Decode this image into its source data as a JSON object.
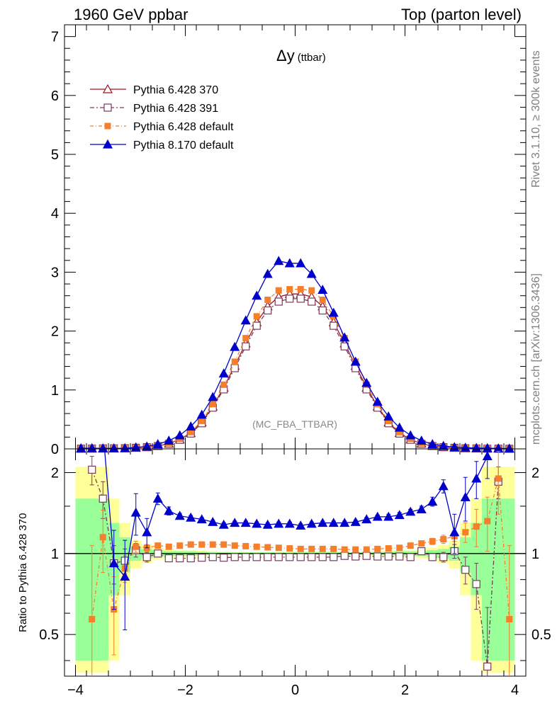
{
  "header": {
    "left": "1960 GeV ppbar",
    "right": "Top (parton level)"
  },
  "side_labels": {
    "rivet": "Rivet 3.1.10, ≥ 300k events",
    "mcplots": "mcplots.cern.ch [arXiv:1306.3436]"
  },
  "chart_data": [
    {
      "type": "line",
      "panel": "main",
      "title": "Δy",
      "title_suffix": "(ttbar)",
      "annotation": "(MC_FBA_TTBAR)",
      "xlim": [
        -4.2,
        4.2
      ],
      "ylim": [
        0,
        7.2
      ],
      "yticks": [
        0,
        1,
        2,
        3,
        4,
        5,
        6,
        7
      ],
      "x": [
        -3.9,
        -3.7,
        -3.5,
        -3.3,
        -3.1,
        -2.9,
        -2.7,
        -2.5,
        -2.3,
        -2.1,
        -1.9,
        -1.7,
        -1.5,
        -1.3,
        -1.1,
        -0.9,
        -0.7,
        -0.5,
        -0.3,
        -0.1,
        0.1,
        0.3,
        0.5,
        0.7,
        0.9,
        1.1,
        1.3,
        1.5,
        1.7,
        1.9,
        2.1,
        2.3,
        2.5,
        2.7,
        2.9,
        3.1,
        3.3,
        3.5,
        3.7,
        3.9
      ],
      "legend_position": "top-left",
      "series": [
        {
          "name": "Pythia 6.428 370",
          "color": "#a0141e",
          "marker": "triangle-open",
          "values": [
            0.002,
            0.004,
            0.006,
            0.008,
            0.012,
            0.018,
            0.03,
            0.05,
            0.09,
            0.16,
            0.27,
            0.45,
            0.72,
            1.04,
            1.41,
            1.79,
            2.15,
            2.42,
            2.58,
            2.63,
            2.63,
            2.58,
            2.42,
            2.15,
            1.79,
            1.41,
            1.04,
            0.72,
            0.45,
            0.27,
            0.16,
            0.09,
            0.05,
            0.03,
            0.018,
            0.012,
            0.008,
            0.006,
            0.004,
            0.002
          ]
        },
        {
          "name": "Pythia 6.428 391",
          "color": "#7a3a5a",
          "marker": "square-open",
          "values": [
            0.004,
            0.006,
            0.009,
            0.01,
            0.012,
            0.019,
            0.029,
            0.048,
            0.086,
            0.154,
            0.26,
            0.435,
            0.7,
            1.01,
            1.37,
            1.74,
            2.09,
            2.35,
            2.5,
            2.55,
            2.55,
            2.5,
            2.35,
            2.09,
            1.74,
            1.37,
            1.01,
            0.7,
            0.435,
            0.26,
            0.154,
            0.086,
            0.048,
            0.029,
            0.019,
            0.011,
            0.008,
            0.003,
            0.004,
            0.002
          ]
        },
        {
          "name": "Pythia 6.428 default",
          "color": "#f57f2a",
          "marker": "square-filled",
          "values": [
            0.001,
            0.004,
            0.007,
            0.006,
            0.011,
            0.019,
            0.031,
            0.052,
            0.095,
            0.17,
            0.285,
            0.475,
            0.76,
            1.09,
            1.48,
            1.88,
            2.25,
            2.53,
            2.69,
            2.71,
            2.71,
            2.69,
            2.53,
            2.25,
            1.88,
            1.48,
            1.09,
            0.76,
            0.475,
            0.285,
            0.17,
            0.095,
            0.052,
            0.031,
            0.019,
            0.013,
            0.01,
            0.006,
            0.006,
            0.001
          ]
        },
        {
          "name": "Pythia 8.170 default",
          "color": "#0000cc",
          "marker": "triangle-filled",
          "values": [
            0.01,
            0.012,
            0.008,
            0.008,
            0.01,
            0.025,
            0.04,
            0.08,
            0.14,
            0.23,
            0.38,
            0.58,
            0.88,
            1.28,
            1.73,
            2.18,
            2.6,
            2.97,
            3.19,
            3.15,
            3.15,
            2.97,
            2.7,
            2.31,
            1.89,
            1.48,
            1.12,
            0.8,
            0.55,
            0.36,
            0.23,
            0.14,
            0.08,
            0.05,
            0.03,
            0.02,
            0.015,
            0.012,
            0.008,
            0.005
          ]
        }
      ]
    },
    {
      "type": "line",
      "panel": "ratio",
      "ylabel": "Ratio to Pythia 6.428 370",
      "xlim": [
        -4.2,
        4.2
      ],
      "ylim": [
        0.35,
        2.45
      ],
      "xticks": [
        -4,
        -2,
        0,
        2,
        4
      ],
      "yticks": [
        0.5,
        1,
        2
      ],
      "reference_line": 1,
      "x": [
        -3.9,
        -3.7,
        -3.5,
        -3.3,
        -3.1,
        -2.9,
        -2.7,
        -2.5,
        -2.3,
        -2.1,
        -1.9,
        -1.7,
        -1.5,
        -1.3,
        -1.1,
        -0.9,
        -0.7,
        -0.5,
        -0.3,
        -0.1,
        0.1,
        0.3,
        0.5,
        0.7,
        0.9,
        1.1,
        1.3,
        1.5,
        1.7,
        1.9,
        2.1,
        2.3,
        2.5,
        2.7,
        2.9,
        3.1,
        3.3,
        3.5,
        3.7,
        3.9
      ],
      "bands": {
        "inner_color": "#99ff99",
        "outer_color": "#ffff99",
        "inner_halfwidth": [
          0.6,
          0.6,
          0.6,
          0.3,
          0.15,
          0.06,
          0.04,
          0.03,
          0.02,
          0.02,
          0.02,
          0.015,
          0.012,
          0.01,
          0.01,
          0.01,
          0.01,
          0.01,
          0.01,
          0.01,
          0.01,
          0.01,
          0.01,
          0.01,
          0.01,
          0.01,
          0.01,
          0.012,
          0.015,
          0.02,
          0.02,
          0.02,
          0.03,
          0.04,
          0.06,
          0.15,
          0.3,
          0.6,
          0.6,
          0.6
        ],
        "outer_halfwidth": [
          1.1,
          1.1,
          1.1,
          0.6,
          0.3,
          0.12,
          0.08,
          0.05,
          0.04,
          0.03,
          0.03,
          0.025,
          0.02,
          0.018,
          0.015,
          0.015,
          0.015,
          0.015,
          0.015,
          0.015,
          0.015,
          0.015,
          0.015,
          0.015,
          0.015,
          0.015,
          0.018,
          0.02,
          0.025,
          0.03,
          0.03,
          0.04,
          0.05,
          0.08,
          0.12,
          0.3,
          0.6,
          1.1,
          1.1,
          1.1
        ]
      },
      "series": [
        {
          "name": "Pythia 6.428 391",
          "color": "#7a3a5a",
          "marker": "square-open",
          "values": [
            null,
            2.05,
            1.6,
            0.92,
            0.94,
            1.03,
            0.97,
            1.0,
            0.96,
            0.96,
            0.96,
            0.965,
            0.97,
            0.965,
            0.97,
            0.97,
            0.97,
            0.97,
            0.97,
            0.97,
            0.97,
            0.97,
            0.97,
            0.97,
            0.98,
            0.975,
            0.98,
            0.975,
            0.975,
            0.975,
            0.97,
            1.02,
            0.97,
            0.97,
            1.02,
            0.87,
            0.77,
            0.38,
            1.85,
            null
          ],
          "errors": [
            0,
            0.25,
            0.25,
            0.15,
            0.1,
            0.06,
            0.04,
            0.02,
            0.015,
            0.01,
            0.01,
            0.01,
            0.01,
            0.01,
            0.01,
            0.01,
            0.01,
            0.01,
            0.01,
            0.01,
            0.01,
            0.01,
            0.01,
            0.01,
            0.01,
            0.01,
            0.01,
            0.01,
            0.01,
            0.01,
            0.015,
            0.02,
            0.03,
            0.04,
            0.06,
            0.1,
            0.15,
            0.25,
            0.25,
            0
          ]
        },
        {
          "name": "Pythia 6.428 default",
          "color": "#f57f2a",
          "marker": "square-filled",
          "values": [
            null,
            0.57,
            1.15,
            0.62,
            0.88,
            1.06,
            1.05,
            1.07,
            1.06,
            1.07,
            1.08,
            1.08,
            1.08,
            1.08,
            1.07,
            1.065,
            1.06,
            1.055,
            1.05,
            1.045,
            1.04,
            1.04,
            1.04,
            1.04,
            1.035,
            1.035,
            1.035,
            1.04,
            1.045,
            1.05,
            1.07,
            1.09,
            1.11,
            1.13,
            1.16,
            1.2,
            1.26,
            1.32,
            1.9,
            0.57
          ],
          "errors": [
            0,
            0.5,
            0.3,
            0.2,
            0.1,
            0.05,
            0.03,
            0.02,
            0.015,
            0.01,
            0.01,
            0.01,
            0.01,
            0.01,
            0.01,
            0.01,
            0.01,
            0.01,
            0.01,
            0.01,
            0.01,
            0.01,
            0.01,
            0.01,
            0.01,
            0.01,
            0.01,
            0.01,
            0.01,
            0.01,
            0.015,
            0.02,
            0.03,
            0.04,
            0.05,
            0.1,
            0.2,
            0.3,
            0.5,
            0.5
          ]
        },
        {
          "name": "Pythia 8.170 default",
          "color": "#0000cc",
          "marker": "triangle-filled",
          "values": [
            null,
            null,
            2.9,
            0.92,
            0.82,
            1.42,
            1.2,
            1.6,
            1.44,
            1.38,
            1.36,
            1.34,
            1.31,
            1.28,
            1.3,
            1.3,
            1.29,
            1.28,
            1.29,
            1.29,
            1.27,
            1.29,
            1.3,
            1.3,
            1.3,
            1.31,
            1.34,
            1.37,
            1.37,
            1.39,
            1.43,
            1.46,
            1.56,
            1.78,
            1.2,
            1.62,
            1.9,
            2.3,
            null,
            null
          ],
          "errors": [
            0,
            0,
            0.4,
            0.3,
            0.3,
            0.25,
            0.15,
            0.08,
            0.05,
            0.03,
            0.025,
            0.02,
            0.02,
            0.02,
            0.02,
            0.02,
            0.02,
            0.02,
            0.02,
            0.02,
            0.02,
            0.02,
            0.02,
            0.02,
            0.02,
            0.02,
            0.02,
            0.02,
            0.03,
            0.03,
            0.03,
            0.04,
            0.06,
            0.1,
            0.2,
            0.3,
            0.3,
            0.4,
            0,
            0
          ]
        }
      ]
    }
  ]
}
